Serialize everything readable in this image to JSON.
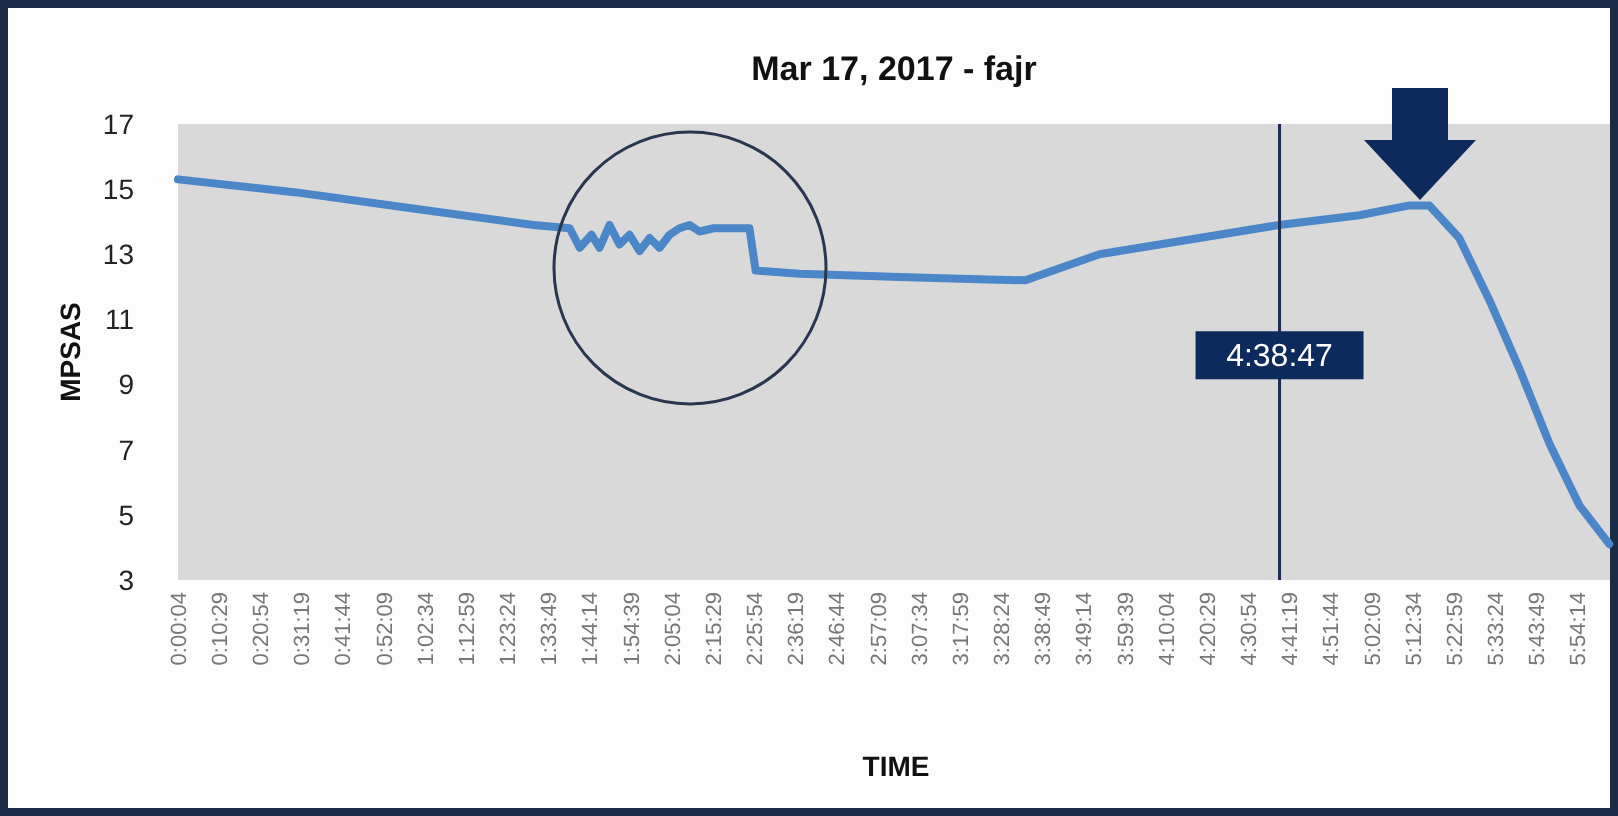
{
  "chart_data": {
    "type": "line",
    "title": "Mar 17, 2017 - fajr",
    "xlabel": "TIME",
    "ylabel": "MPSAS",
    "xlim": [
      0.0011,
      6.04
    ],
    "ylim": [
      3,
      17
    ],
    "yticks": [
      3,
      5,
      7,
      9,
      11,
      13,
      15,
      17
    ],
    "xticks": [
      {
        "value": 0.0011,
        "label": "0:00:04"
      },
      {
        "value": 0.1747,
        "label": "0:10:29"
      },
      {
        "value": 0.3483,
        "label": "0:20:54"
      },
      {
        "value": 0.5219,
        "label": "0:31:19"
      },
      {
        "value": 0.6956,
        "label": "0:41:44"
      },
      {
        "value": 0.8692,
        "label": "0:52:09"
      },
      {
        "value": 1.0428,
        "label": "1:02:34"
      },
      {
        "value": 1.2164,
        "label": "1:12:59"
      },
      {
        "value": 1.39,
        "label": "1:23:24"
      },
      {
        "value": 1.5636,
        "label": "1:33:49"
      },
      {
        "value": 1.7372,
        "label": "1:44:14"
      },
      {
        "value": 1.9108,
        "label": "1:54:39"
      },
      {
        "value": 2.0844,
        "label": "2:05:04"
      },
      {
        "value": 2.2581,
        "label": "2:15:29"
      },
      {
        "value": 2.4317,
        "label": "2:25:54"
      },
      {
        "value": 2.6053,
        "label": "2:36:19"
      },
      {
        "value": 2.7789,
        "label": "2:46:44"
      },
      {
        "value": 2.9525,
        "label": "2:57:09"
      },
      {
        "value": 3.1261,
        "label": "3:07:34"
      },
      {
        "value": 3.2997,
        "label": "3:17:59"
      },
      {
        "value": 3.4733,
        "label": "3:28:24"
      },
      {
        "value": 3.6469,
        "label": "3:38:49"
      },
      {
        "value": 3.8206,
        "label": "3:49:14"
      },
      {
        "value": 3.9942,
        "label": "3:59:39"
      },
      {
        "value": 4.1678,
        "label": "4:10:04"
      },
      {
        "value": 4.3414,
        "label": "4:20:29"
      },
      {
        "value": 4.515,
        "label": "4:30:54"
      },
      {
        "value": 4.6886,
        "label": "4:41:19"
      },
      {
        "value": 4.8622,
        "label": "4:51:44"
      },
      {
        "value": 5.0358,
        "label": "5:02:09"
      },
      {
        "value": 5.2094,
        "label": "5:12:34"
      },
      {
        "value": 5.3831,
        "label": "5:22:59"
      },
      {
        "value": 5.5567,
        "label": "5:33:24"
      },
      {
        "value": 5.7303,
        "label": "5:43:49"
      },
      {
        "value": 5.9039,
        "label": "5:54:14"
      }
    ],
    "grid": false,
    "marker": "none",
    "line_style": "solid",
    "ref_lines": [
      {
        "axis": "x",
        "value": 4.6464,
        "color": "#1f2d4d"
      }
    ],
    "annotations": [
      {
        "text": "4:38:47",
        "x": 4.6464,
        "y": 9.9
      }
    ],
    "series": [
      {
        "color": "#4a86c8",
        "x": [
          0.0011,
          0.5,
          1.0,
          1.5,
          1.653,
          1.695,
          1.745,
          1.779,
          1.821,
          1.863,
          1.905,
          1.948,
          1.99,
          2.032,
          2.074,
          2.116,
          2.158,
          2.2,
          2.26,
          2.411,
          2.437,
          2.622,
          3.044,
          3.3,
          3.575,
          3.887,
          4.308,
          4.645,
          4.983,
          5.194,
          5.278,
          5.404,
          5.531,
          5.657,
          5.784,
          5.91,
          6.037
        ],
        "values": [
          15.3,
          14.9,
          14.4,
          13.9,
          13.8,
          13.2,
          13.6,
          13.2,
          13.9,
          13.3,
          13.6,
          13.1,
          13.5,
          13.2,
          13.6,
          13.8,
          13.9,
          13.7,
          13.8,
          13.8,
          12.5,
          12.4,
          12.3,
          12.25,
          12.2,
          13.0,
          13.5,
          13.9,
          14.2,
          14.5,
          14.5,
          13.5,
          11.6,
          9.5,
          7.2,
          5.3,
          4.1
        ]
      }
    ]
  }
}
